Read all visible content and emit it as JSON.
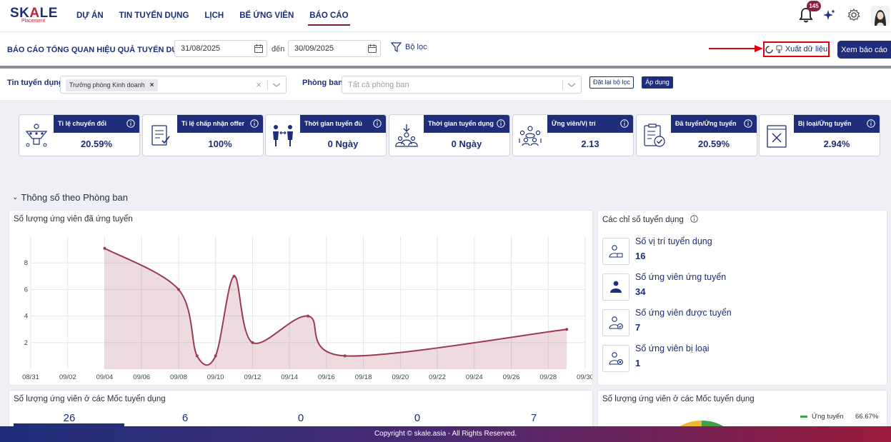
{
  "nav": {
    "logo": {
      "brand_left": "SK",
      "brand_mid": "A",
      "brand_right": "LE",
      "sub": "Placement"
    },
    "items": [
      {
        "label": "DỰ ÁN",
        "active": false
      },
      {
        "label": "TIN TUYỂN DỤNG",
        "active": false
      },
      {
        "label": "LỊCH",
        "active": false
      },
      {
        "label": "BỂ ỨNG VIÊN",
        "active": false
      },
      {
        "label": "BÁO CÁO",
        "active": true
      }
    ],
    "notification_count": "145",
    "icons": [
      "bell-icon",
      "sparkle-icon",
      "gear-icon",
      "avatar"
    ]
  },
  "filterbar": {
    "title": "BÁO CÁO TỔNG QUAN HIỆU QUẢ TUYỂN DỤNG",
    "from_date": "31/08/2025",
    "to_label": "đến",
    "to_date": "30/09/2025",
    "filter_label": "Bộ lọc",
    "export_label": "Xuất dữ liệu",
    "view_label": "Xem báo cáo"
  },
  "filter2": {
    "job_label": "Tin tuyển dụng",
    "job_chip": "Trưởng phòng Kinh doanh",
    "dept_label": "Phòng ban",
    "dept_placeholder": "Tất cả phòng ban",
    "reset_label": "Đặt lại bộ lọc",
    "apply_label": "Áp dụng"
  },
  "kpis": [
    {
      "title": "Tỉ lệ chuyển đổi",
      "value": "20.59%",
      "icon": "funnel-people-icon"
    },
    {
      "title": "Tỉ lệ chấp nhận offer",
      "value": "100%",
      "icon": "document-check-icon"
    },
    {
      "title": "Thời gian tuyển đủ",
      "value": "0 Ngày",
      "icon": "people-exchange-icon"
    },
    {
      "title": "Thời gian tuyển dụng",
      "value": "0 Ngày",
      "icon": "people-download-icon"
    },
    {
      "title": "Ứng viên/Vị trí",
      "value": "2.13",
      "icon": "team-meeting-icon"
    },
    {
      "title": "Đã tuyển/Ứng tuyển",
      "value": "20.59%",
      "icon": "clipboard-check-icon"
    },
    {
      "title": "Bị loại/Ứng tuyển",
      "value": "2.94%",
      "icon": "document-reject-icon"
    }
  ],
  "section_title": "Thông số theo Phòng ban",
  "chart_panel_title": "Số lượng ứng viên đã ứng tuyển",
  "chart_data": {
    "type": "area",
    "title": "Số lượng ứng viên đã ứng tuyển",
    "x_tick_labels": [
      "08/31",
      "09/02",
      "09/04",
      "09/06",
      "09/08",
      "09/10",
      "09/12",
      "09/14",
      "09/16",
      "09/18",
      "09/20",
      "09/22",
      "09/24",
      "09/26",
      "09/28",
      "09/30"
    ],
    "y_tick_labels": [
      "2",
      "4",
      "6",
      "8"
    ],
    "ylim": [
      0,
      10
    ],
    "grid": true,
    "series": [
      {
        "color": "#9c3a55",
        "points": [
          {
            "x": "09/04",
            "y": 9.1
          },
          {
            "x": "09/08",
            "y": 6.0
          },
          {
            "x": "09/09",
            "y": 1.0
          },
          {
            "x": "09/10",
            "y": 1.0
          },
          {
            "x": "09/11",
            "y": 7.0
          },
          {
            "x": "09/12",
            "y": 2.0
          },
          {
            "x": "09/15",
            "y": 4.0
          },
          {
            "x": "09/17",
            "y": 1.0
          },
          {
            "x": "09/29",
            "y": 3.0
          }
        ]
      }
    ]
  },
  "indicators": {
    "title": "Các chỉ số tuyển dụng",
    "items": [
      {
        "label": "Số vị trí tuyển dụng",
        "value": "16",
        "icon": "position-user-icon"
      },
      {
        "label": "Số ứng viên ứng tuyển",
        "value": "34",
        "icon": "applicant-user-icon"
      },
      {
        "label": "Số ứng viên được tuyển",
        "value": "7",
        "icon": "hired-user-icon"
      },
      {
        "label": "Số ứng viên bị loại",
        "value": "1",
        "icon": "rejected-user-icon"
      }
    ]
  },
  "milestones": {
    "title": "Số lượng ứng viên ở các Mốc tuyển dụng",
    "values": [
      "26",
      "6",
      "0",
      "0",
      "7"
    ]
  },
  "pie": {
    "title": "Số lượng ứng viên ở các Mốc tuyển dụng",
    "legend_label": "Ứng tuyển",
    "legend_pct": "66.67%",
    "color": "#43a047"
  },
  "footer": "Copyright © skale.asia - All Rights Reserved."
}
